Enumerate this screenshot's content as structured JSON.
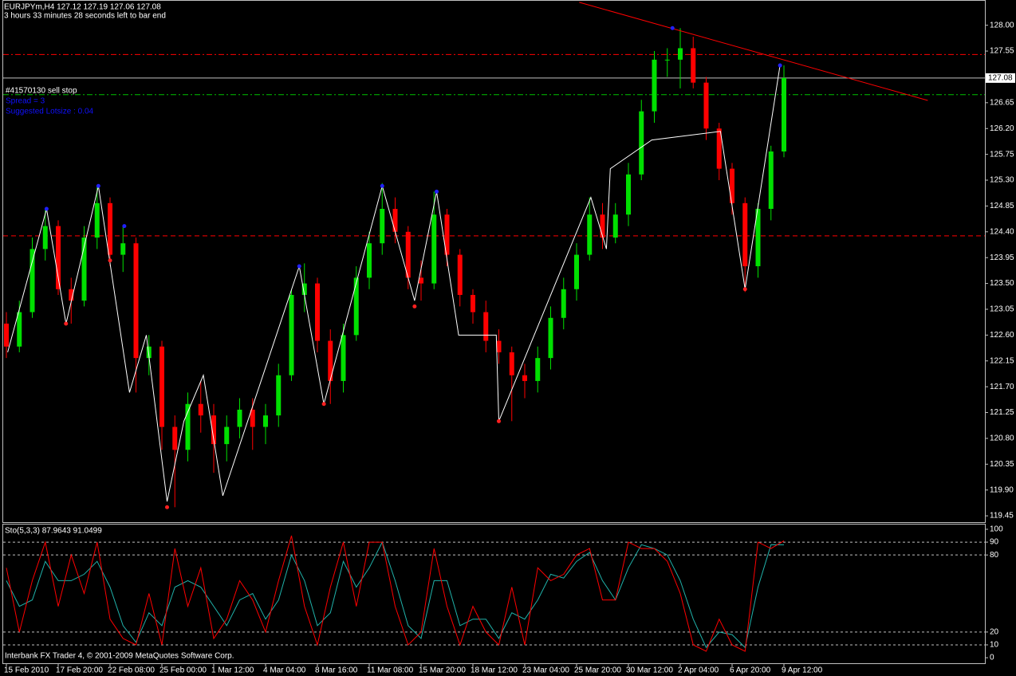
{
  "chart_data": [
    {
      "type": "candlestick",
      "title": "EURJPYm,H4  127.12 127.19 127.06 127.08",
      "subtitle": "3 hours 33 minutes 28 seconds left to bar end",
      "annotations": [
        "#41570130 sell stop",
        "Spread = 3",
        "Suggested Lotsize : 0.04"
      ],
      "annotation_colors": [
        "#ffffff",
        "#1010ff",
        "#1010ff"
      ],
      "up_color": "#00e000",
      "down_color": "#ff0000",
      "ylim": [
        119.34,
        128.44
      ],
      "yticks": [
        {
          "value": 128.0,
          "label": "128.00"
        },
        127.55,
        126.65,
        {
          "value": 126.2,
          "label": "126.20"
        },
        125.75,
        {
          "value": 125.3,
          "label": "125.30"
        },
        124.85,
        {
          "value": 124.4,
          "label": "124.40"
        },
        123.95,
        {
          "value": 123.5,
          "label": "123.50"
        },
        123.05,
        {
          "value": 122.6,
          "label": "122.60"
        },
        122.15,
        {
          "value": 121.7,
          "label": "121.70"
        },
        121.25,
        {
          "value": 120.8,
          "label": "120.80"
        },
        120.35,
        {
          "value": 119.9,
          "label": "119.90"
        },
        119.45
      ],
      "ohlc": [
        [
          122.8,
          123.0,
          122.2,
          122.4
        ],
        [
          122.4,
          123.2,
          122.3,
          123.0
        ],
        [
          123.0,
          124.3,
          122.9,
          124.1
        ],
        [
          124.1,
          124.8,
          123.9,
          124.5
        ],
        [
          124.5,
          124.6,
          123.3,
          123.4
        ],
        [
          123.4,
          123.6,
          122.8,
          123.2
        ],
        [
          123.2,
          124.5,
          123.1,
          124.3
        ],
        [
          124.3,
          125.2,
          124.1,
          124.9
        ],
        [
          124.9,
          125.0,
          123.8,
          124.0
        ],
        [
          124.0,
          124.5,
          123.7,
          124.2
        ],
        [
          124.2,
          124.3,
          121.6,
          122.2
        ],
        [
          122.2,
          122.6,
          121.9,
          122.4
        ],
        [
          122.4,
          122.5,
          120.6,
          121.0
        ],
        [
          121.0,
          121.2,
          119.6,
          120.6
        ],
        [
          120.6,
          121.6,
          120.4,
          121.4
        ],
        [
          121.4,
          121.8,
          120.9,
          121.2
        ],
        [
          121.2,
          121.4,
          120.2,
          120.7
        ],
        [
          120.7,
          121.2,
          120.4,
          121.0
        ],
        [
          121.0,
          121.5,
          120.8,
          121.3
        ],
        [
          121.3,
          121.5,
          120.6,
          121.0
        ],
        [
          121.0,
          121.4,
          120.7,
          121.2
        ],
        [
          121.2,
          122.1,
          121.0,
          121.9
        ],
        [
          121.9,
          123.4,
          121.8,
          123.3
        ],
        [
          123.3,
          123.85,
          123.0,
          123.5
        ],
        [
          123.5,
          123.6,
          122.3,
          122.5
        ],
        [
          122.5,
          122.7,
          121.4,
          121.8
        ],
        [
          121.8,
          122.8,
          121.6,
          122.6
        ],
        [
          122.6,
          123.8,
          122.5,
          123.6
        ],
        [
          123.6,
          124.4,
          123.4,
          124.2
        ],
        [
          124.2,
          125.25,
          124.0,
          124.8
        ],
        [
          124.8,
          125.0,
          124.2,
          124.4
        ],
        [
          124.4,
          124.5,
          123.4,
          123.6
        ],
        [
          123.6,
          123.9,
          123.2,
          123.5
        ],
        [
          123.5,
          125.1,
          123.4,
          124.7
        ],
        [
          124.7,
          124.8,
          123.8,
          124.0
        ],
        [
          124.0,
          124.1,
          123.1,
          123.3
        ],
        [
          123.3,
          123.4,
          122.8,
          123.0
        ],
        [
          123.0,
          123.2,
          122.3,
          122.5
        ],
        [
          122.5,
          122.7,
          122.1,
          122.3
        ],
        [
          122.3,
          122.4,
          121.1,
          121.9
        ],
        [
          121.9,
          122.1,
          121.5,
          121.8
        ],
        [
          121.8,
          122.4,
          121.6,
          122.2
        ],
        [
          122.2,
          123.1,
          122.0,
          122.9
        ],
        [
          122.9,
          123.6,
          122.7,
          123.4
        ],
        [
          123.4,
          124.2,
          123.2,
          124.0
        ],
        [
          124.0,
          125.0,
          123.9,
          124.7
        ],
        [
          124.7,
          124.9,
          124.1,
          124.3
        ],
        [
          124.3,
          124.9,
          124.2,
          124.7
        ],
        [
          124.7,
          125.6,
          124.5,
          125.4
        ],
        [
          125.4,
          126.7,
          125.3,
          126.5
        ],
        [
          126.5,
          127.55,
          126.3,
          127.4
        ],
        [
          127.4,
          127.6,
          127.1,
          127.4
        ],
        [
          127.4,
          127.95,
          126.9,
          127.6
        ],
        [
          127.6,
          127.8,
          126.9,
          127.0
        ],
        [
          127.0,
          127.1,
          126.0,
          126.2
        ],
        [
          126.2,
          126.3,
          125.3,
          125.5
        ],
        [
          125.5,
          125.6,
          124.7,
          124.9
        ],
        [
          124.9,
          125.0,
          123.35,
          123.8
        ],
        [
          123.8,
          124.9,
          123.6,
          124.8
        ],
        [
          124.8,
          125.9,
          124.6,
          125.8
        ],
        [
          125.8,
          127.3,
          125.7,
          127.08
        ]
      ],
      "zigzag": {
        "color": "#ffffff",
        "x": [
          0.1,
          3.1,
          4.6,
          7.1,
          9.5,
          10.8,
          12.4,
          13.7,
          15.2,
          16.7,
          22.6,
          24.5,
          29.0,
          31.5,
          33.2,
          34.9,
          37.8,
          38.0,
          45.1,
          46.3,
          46.6,
          49.8,
          55.1,
          57.0,
          59.7
        ],
        "values": [
          122.3,
          124.8,
          122.8,
          125.2,
          121.6,
          122.6,
          119.7,
          121.1,
          121.9,
          119.8,
          123.8,
          121.4,
          125.2,
          123.2,
          125.1,
          122.6,
          122.6,
          121.1,
          125.0,
          124.1,
          125.5,
          126.0,
          126.15,
          123.4,
          127.3
        ]
      },
      "peaks": {
        "color": "#2020ff",
        "x": [
          3.1,
          7.1,
          9.1,
          22.6,
          29.0,
          33.2,
          51.4,
          59.7
        ],
        "values": [
          124.8,
          125.2,
          124.5,
          123.8,
          125.2,
          125.1,
          127.95,
          127.3
        ]
      },
      "troughs": {
        "color": "#ff2020",
        "x": [
          4.6,
          8.0,
          12.4,
          24.5,
          31.5,
          38.0,
          57.0
        ],
        "values": [
          122.8,
          123.9,
          119.6,
          121.4,
          123.1,
          121.1,
          123.4
        ]
      },
      "levels": [
        {
          "value": 127.49,
          "color": "#ff0000",
          "dash": "7 3 2 3"
        },
        {
          "value": 124.33,
          "color": "#ff0000",
          "dash": "6 4"
        },
        {
          "value": 126.79,
          "color": "#00c000",
          "dash": "7 3 2 3"
        }
      ],
      "trendline": {
        "color": "#ff0000",
        "x": [
          44.2,
          71.1
        ],
        "values": [
          128.4,
          126.69
        ]
      },
      "last_price": 127.08
    },
    {
      "type": "line",
      "title": "Sto(5,3,3) 87.9643 91.0499",
      "categories": [
        "15 Feb 2010",
        null,
        null,
        null,
        "17 Feb 20:00",
        null,
        null,
        null,
        "22 Feb 08:00",
        null,
        null,
        null,
        "25 Feb 00:00",
        null,
        null,
        null,
        "1 Mar 12:00",
        null,
        null,
        null,
        "4 Mar 04:00",
        null,
        null,
        null,
        "8 Mar 16:00",
        null,
        null,
        null,
        "11 Mar 08:00",
        null,
        null,
        null,
        "15 Mar 20:00",
        null,
        null,
        null,
        "18 Mar 12:00",
        null,
        null,
        null,
        "23 Mar 04:00",
        null,
        null,
        null,
        "25 Mar 20:00",
        null,
        null,
        null,
        "30 Mar 12:00",
        null,
        null,
        null,
        "2 Apr 04:00",
        null,
        null,
        null,
        "6 Apr 20:00",
        null,
        null,
        null,
        "9 Apr 12:00"
      ],
      "series": [
        {
          "color": "#20b2aa",
          "values": [
            60,
            40,
            45,
            75,
            60,
            60,
            65,
            75,
            55,
            25,
            12,
            35,
            25,
            55,
            60,
            55,
            40,
            25,
            45,
            50,
            30,
            45,
            80,
            60,
            25,
            35,
            75,
            55,
            70,
            90,
            60,
            25,
            15,
            60,
            60,
            25,
            30,
            30,
            15,
            35,
            30,
            45,
            65,
            62,
            75,
            82,
            60,
            45,
            70,
            88,
            85,
            80,
            60,
            30,
            8,
            20,
            18,
            8,
            55,
            88,
            87.9643
          ]
        },
        {
          "color": "#ff0000",
          "values": [
            70,
            20,
            60,
            90,
            40,
            80,
            50,
            90,
            30,
            15,
            10,
            50,
            10,
            85,
            40,
            70,
            15,
            30,
            60,
            45,
            20,
            60,
            95,
            40,
            10,
            55,
            90,
            40,
            90,
            90,
            40,
            10,
            20,
            85,
            40,
            10,
            40,
            20,
            10,
            55,
            10,
            70,
            60,
            65,
            80,
            85,
            45,
            45,
            90,
            85,
            85,
            75,
            50,
            10,
            5,
            30,
            10,
            5,
            90,
            85,
            91.0499
          ]
        }
      ],
      "ylim": [
        -4.3,
        103.7
      ],
      "yticks": [
        100,
        90,
        80,
        20,
        10,
        0
      ],
      "levels": [
        90,
        80,
        20,
        10
      ],
      "footer": "Interbank FX Trader 4, © 2001-2009 MetaQuotes Software Corp."
    }
  ]
}
